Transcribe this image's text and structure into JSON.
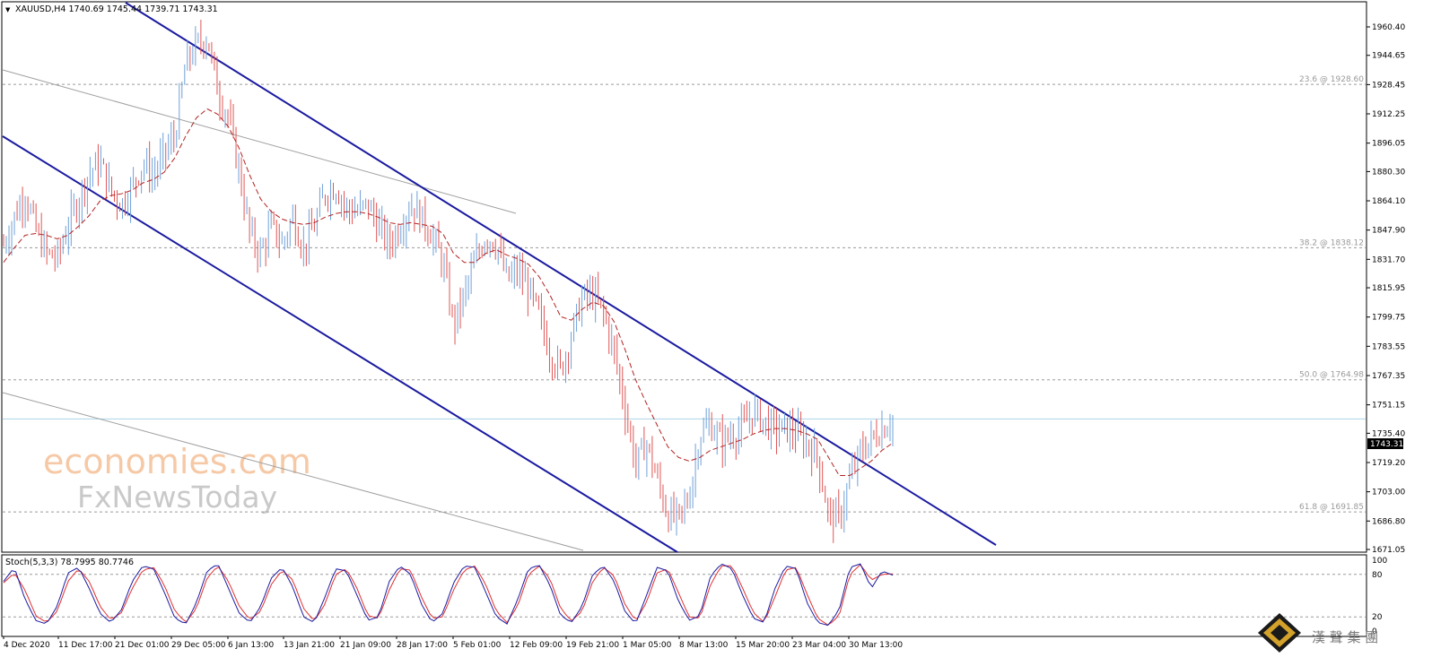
{
  "window": {
    "header_marker": "▼",
    "header_text": "XAUUSD,H4  1740.69 1745.44 1739.71 1743.31",
    "stoch_header": "Stoch(5,3,3) 78.7995 80.7746"
  },
  "watermark": {
    "line1": "economies.com",
    "line2": "FxNewsToday",
    "brand": "漢 聲 集 團"
  },
  "colors": {
    "up_bar": "#6fa0d8",
    "down_bar": "#e05555",
    "ma_line": "#b22222",
    "channel": "#1a1aa0",
    "trend_gray": "#a0a0a0",
    "price_line": "#a9d3e6",
    "stoch_main": "#1a1aa0",
    "stoch_signal": "#e03030"
  },
  "chart_data": {
    "type": "candlestick",
    "symbol": "XAUUSD",
    "timeframe": "H4",
    "current_price": "1743.31",
    "ylim": [
      1671.05,
      1966
    ],
    "y_ticks": [
      "1960.40",
      "1944.65",
      "1928.45",
      "1912.25",
      "1896.05",
      "1880.30",
      "1864.10",
      "1847.90",
      "1831.70",
      "1815.95",
      "1799.75",
      "1783.55",
      "1767.35",
      "1751.15",
      "1735.40",
      "1719.20",
      "1703.00",
      "1686.80",
      "1671.05"
    ],
    "x_ticks": [
      "4 Dec 2020",
      "11 Dec 17:00",
      "21 Dec 01:00",
      "29 Dec 05:00",
      "6 Jan 13:00",
      "13 Jan 21:00",
      "21 Jan 09:00",
      "28 Jan 17:00",
      "5 Feb 01:00",
      "12 Feb 09:00",
      "19 Feb 21:00",
      "1 Mar 05:00",
      "8 Mar 13:00",
      "15 Mar 20:00",
      "23 Mar 04:00",
      "30 Mar 13:00"
    ],
    "fib_levels": [
      {
        "label": "23.6 @ 1928.60",
        "value": 1928.6
      },
      {
        "label": "38.2 @ 1838.12",
        "value": 1838.12
      },
      {
        "label": "50.0 @ 1764.98",
        "value": 1764.98
      },
      {
        "label": "61.8 @ 1691.85",
        "value": 1691.85
      }
    ],
    "close_path": [
      1840,
      1855,
      1868,
      1848,
      1835,
      1832,
      1850,
      1865,
      1880,
      1885,
      1870,
      1862,
      1872,
      1885,
      1878,
      1890,
      1900,
      1940,
      1950,
      1955,
      1925,
      1910,
      1880,
      1845,
      1835,
      1850,
      1840,
      1855,
      1838,
      1850,
      1868,
      1872,
      1860,
      1858,
      1862,
      1850,
      1840,
      1850,
      1862,
      1855,
      1845,
      1830,
      1795,
      1812,
      1830,
      1845,
      1840,
      1820,
      1825,
      1815,
      1800,
      1780,
      1770,
      1790,
      1810,
      1812,
      1802,
      1780,
      1750,
      1718,
      1730,
      1710,
      1690,
      1688,
      1700,
      1735,
      1740,
      1730,
      1735,
      1738,
      1748,
      1742,
      1737,
      1738,
      1735,
      1730,
      1722,
      1690,
      1688,
      1710,
      1725,
      1732,
      1738,
      1743.31
    ],
    "ma_path": [
      1830,
      1838,
      1845,
      1846,
      1845,
      1843,
      1845,
      1850,
      1856,
      1864,
      1867,
      1868,
      1870,
      1874,
      1876,
      1880,
      1888,
      1900,
      1910,
      1915,
      1912,
      1905,
      1893,
      1878,
      1865,
      1858,
      1854,
      1852,
      1851,
      1852,
      1855,
      1857,
      1858,
      1858,
      1857,
      1855,
      1852,
      1851,
      1852,
      1851,
      1850,
      1846,
      1835,
      1830,
      1830,
      1835,
      1837,
      1834,
      1832,
      1829,
      1822,
      1812,
      1800,
      1798,
      1804,
      1808,
      1806,
      1797,
      1782,
      1765,
      1752,
      1740,
      1728,
      1722,
      1720,
      1722,
      1726,
      1728,
      1730,
      1732,
      1735,
      1737,
      1738,
      1738,
      1737,
      1735,
      1732,
      1722,
      1712,
      1712,
      1716,
      1720,
      1726,
      1730
    ],
    "stochastic": {
      "name": "Stoch(5,3,3)",
      "main": 78.7995,
      "signal": 80.7746,
      "levels": [
        80,
        20
      ],
      "y_ticks": [
        "100",
        "80",
        "20",
        "0"
      ],
      "main_path": [
        70,
        90,
        45,
        15,
        10,
        35,
        82,
        90,
        60,
        25,
        12,
        30,
        70,
        92,
        88,
        55,
        18,
        10,
        40,
        85,
        95,
        60,
        25,
        12,
        35,
        75,
        90,
        62,
        20,
        12,
        48,
        88,
        85,
        50,
        15,
        20,
        70,
        92,
        80,
        38,
        12,
        25,
        68,
        92,
        90,
        55,
        20,
        10,
        45,
        88,
        93,
        65,
        22,
        12,
        35,
        80,
        92,
        70,
        28,
        10,
        50,
        90,
        85,
        42,
        15,
        22,
        78,
        95,
        88,
        50,
        18,
        12,
        60,
        92,
        88,
        40,
        12,
        8,
        30,
        90,
        95,
        60,
        85,
        78.8
      ],
      "signal_path": [
        68,
        82,
        58,
        22,
        12,
        28,
        70,
        88,
        70,
        35,
        16,
        26,
        60,
        86,
        90,
        65,
        28,
        12,
        32,
        75,
        92,
        70,
        35,
        16,
        28,
        66,
        86,
        72,
        32,
        14,
        38,
        80,
        88,
        60,
        22,
        18,
        58,
        88,
        86,
        48,
        18,
        20,
        58,
        86,
        92,
        66,
        28,
        12,
        36,
        80,
        92,
        74,
        32,
        14,
        28,
        70,
        90,
        78,
        38,
        14,
        40,
        82,
        88,
        54,
        20,
        18,
        66,
        92,
        92,
        60,
        26,
        12,
        48,
        86,
        90,
        52,
        18,
        8,
        22,
        80,
        94,
        72,
        80,
        80.8
      ]
    }
  }
}
